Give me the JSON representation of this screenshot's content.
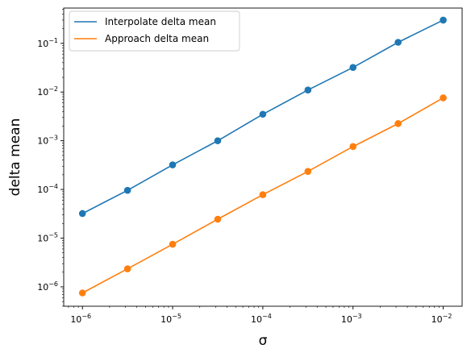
{
  "chart_data": {
    "type": "line",
    "xlabel": "σ",
    "ylabel": "delta mean",
    "xscale": "log",
    "yscale": "log",
    "xlim": [
      6.2e-07,
      0.0162
    ],
    "ylim": [
      4e-07,
      0.53
    ],
    "grid": false,
    "legend_position": "top-left",
    "x": [
      1e-06,
      3.162e-06,
      1e-05,
      3.162e-05,
      0.0001,
      0.0003162,
      0.001,
      0.003162,
      0.01
    ],
    "x_ticks": [
      {
        "value": 1e-06,
        "base": "10",
        "exp": "−6"
      },
      {
        "value": 1e-05,
        "base": "10",
        "exp": "−5"
      },
      {
        "value": 0.0001,
        "base": "10",
        "exp": "−4"
      },
      {
        "value": 0.001,
        "base": "10",
        "exp": "−3"
      },
      {
        "value": 0.01,
        "base": "10",
        "exp": "−2"
      }
    ],
    "y_ticks": [
      {
        "value": 1e-06,
        "base": "10",
        "exp": "−6"
      },
      {
        "value": 1e-05,
        "base": "10",
        "exp": "−5"
      },
      {
        "value": 0.0001,
        "base": "10",
        "exp": "−4"
      },
      {
        "value": 0.001,
        "base": "10",
        "exp": "−3"
      },
      {
        "value": 0.01,
        "base": "10",
        "exp": "−2"
      },
      {
        "value": 0.1,
        "base": "10",
        "exp": "−1"
      }
    ],
    "series": [
      {
        "name": "Interpolate delta mean",
        "color": "#1f77b4",
        "values": [
          3.2e-05,
          9.6e-05,
          0.00032,
          0.001,
          0.0035,
          0.011,
          0.032,
          0.105,
          0.3
        ]
      },
      {
        "name": "Approach delta mean",
        "color": "#ff7f0e",
        "values": [
          7.5e-07,
          2.35e-06,
          7.5e-06,
          2.45e-05,
          7.8e-05,
          0.000235,
          0.00076,
          0.00225,
          0.0076
        ]
      }
    ]
  }
}
